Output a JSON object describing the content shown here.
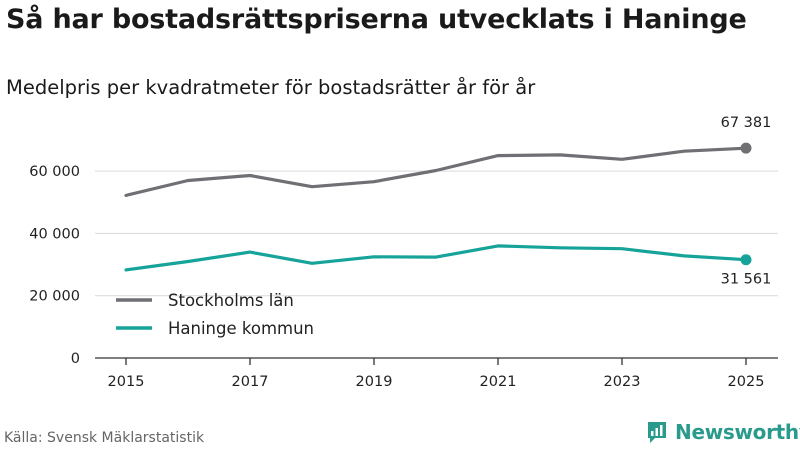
{
  "title": "Så har bostadsrättspriserna utvecklats i Haninge",
  "subtitle": "Medelpris per kvadratmeter för bostadsrätter år för år",
  "source": "Källa: Svensk Mäklarstatistik",
  "brand": "Newsworthy",
  "colors": {
    "stockholm": "#6f6f74",
    "haninge": "#16a39a",
    "brand": "#2a9a8c"
  },
  "chart_data": {
    "type": "line",
    "title": "Så har bostadsrättspriserna utvecklats i Haninge",
    "subtitle": "Medelpris per kvadratmeter för bostadsrätter år för år",
    "xlabel": "",
    "ylabel": "",
    "x": [
      2015,
      2016,
      2017,
      2018,
      2019,
      2020,
      2021,
      2022,
      2023,
      2024,
      2025
    ],
    "xticks": [
      2015,
      2017,
      2019,
      2021,
      2023,
      2025
    ],
    "ylim": [
      0,
      70000
    ],
    "yticks": [
      0,
      20000,
      40000,
      60000
    ],
    "ytick_labels": [
      "0",
      "20 000",
      "40 000",
      "60 000"
    ],
    "grid": true,
    "legend_position": "bottom-left",
    "series": [
      {
        "name": "Stockholms län",
        "key": "stockholm",
        "values": [
          52200,
          57000,
          58600,
          55000,
          56600,
          60200,
          65000,
          65200,
          63800,
          66400,
          67381
        ],
        "end_label": "67 381"
      },
      {
        "name": "Haninge kommun",
        "key": "haninge",
        "values": [
          28300,
          31000,
          34000,
          30400,
          32500,
          32400,
          36000,
          35400,
          35100,
          32800,
          31561
        ],
        "end_label": "31 561"
      }
    ]
  }
}
